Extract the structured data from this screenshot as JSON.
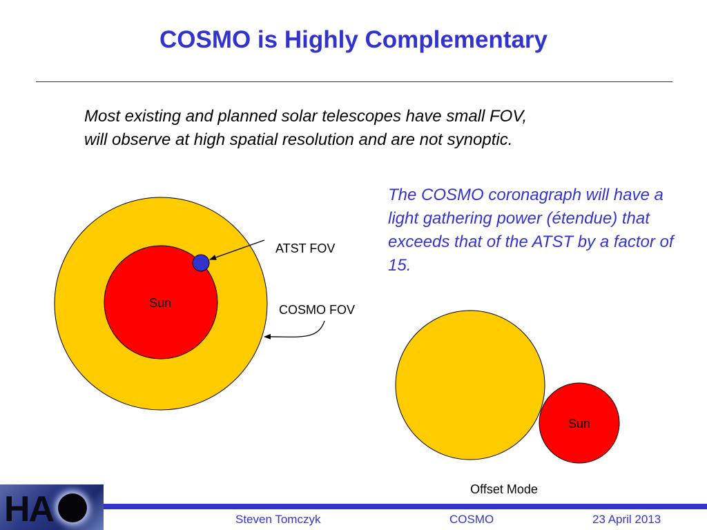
{
  "slide": {
    "title": "COSMO is Highly Complementary",
    "intro_line1": "Most existing and planned solar telescopes have small FOV,",
    "intro_line2": "will observe at high spatial resolution and are not synoptic.",
    "cosmo_note": "The COSMO coronagraph will have a light gathering power (étendue) that exceeds that of the ATST by a factor of 15."
  },
  "diagram_left": {
    "sun_label": "Sun",
    "atst_label": "ATST FOV",
    "cosmo_label": "COSMO FOV"
  },
  "diagram_right": {
    "sun_label": "Sun",
    "caption": "Offset Mode"
  },
  "colors": {
    "title": "#3333cc",
    "fov_yellow": "#ffcc00",
    "sun_red": "#ff0000",
    "atst_blue": "#3333cc"
  },
  "footer": {
    "author": "Steven Tomczyk",
    "project": "COSMO",
    "date": "23 April 2013",
    "logo_text": "HA"
  }
}
